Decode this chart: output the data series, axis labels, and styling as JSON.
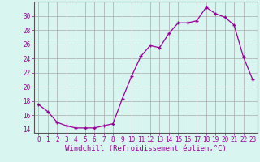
{
  "x": [
    0,
    1,
    2,
    3,
    4,
    5,
    6,
    7,
    8,
    9,
    10,
    11,
    12,
    13,
    14,
    15,
    16,
    17,
    18,
    19,
    20,
    21,
    22,
    23
  ],
  "y": [
    17.5,
    16.5,
    15.0,
    14.5,
    14.2,
    14.2,
    14.2,
    14.5,
    14.8,
    18.3,
    21.5,
    24.3,
    25.8,
    25.5,
    27.5,
    29.0,
    29.0,
    29.3,
    31.2,
    30.3,
    29.8,
    28.7,
    24.2,
    21.0
  ],
  "line_color": "#990099",
  "marker": "+",
  "bg_color": "#d8f5f0",
  "grid_color": "#aaaaaa",
  "xlabel": "Windchill (Refroidissement éolien,°C)",
  "xlim": [
    -0.5,
    23.5
  ],
  "ylim": [
    13.5,
    32
  ],
  "yticks": [
    14,
    16,
    18,
    20,
    22,
    24,
    26,
    28,
    30
  ],
  "xticks": [
    0,
    1,
    2,
    3,
    4,
    5,
    6,
    7,
    8,
    9,
    10,
    11,
    12,
    13,
    14,
    15,
    16,
    17,
    18,
    19,
    20,
    21,
    22,
    23
  ],
  "tick_label_color": "#990099",
  "tick_label_size": 5.5,
  "xlabel_size": 6.5,
  "spine_color": "#555555"
}
